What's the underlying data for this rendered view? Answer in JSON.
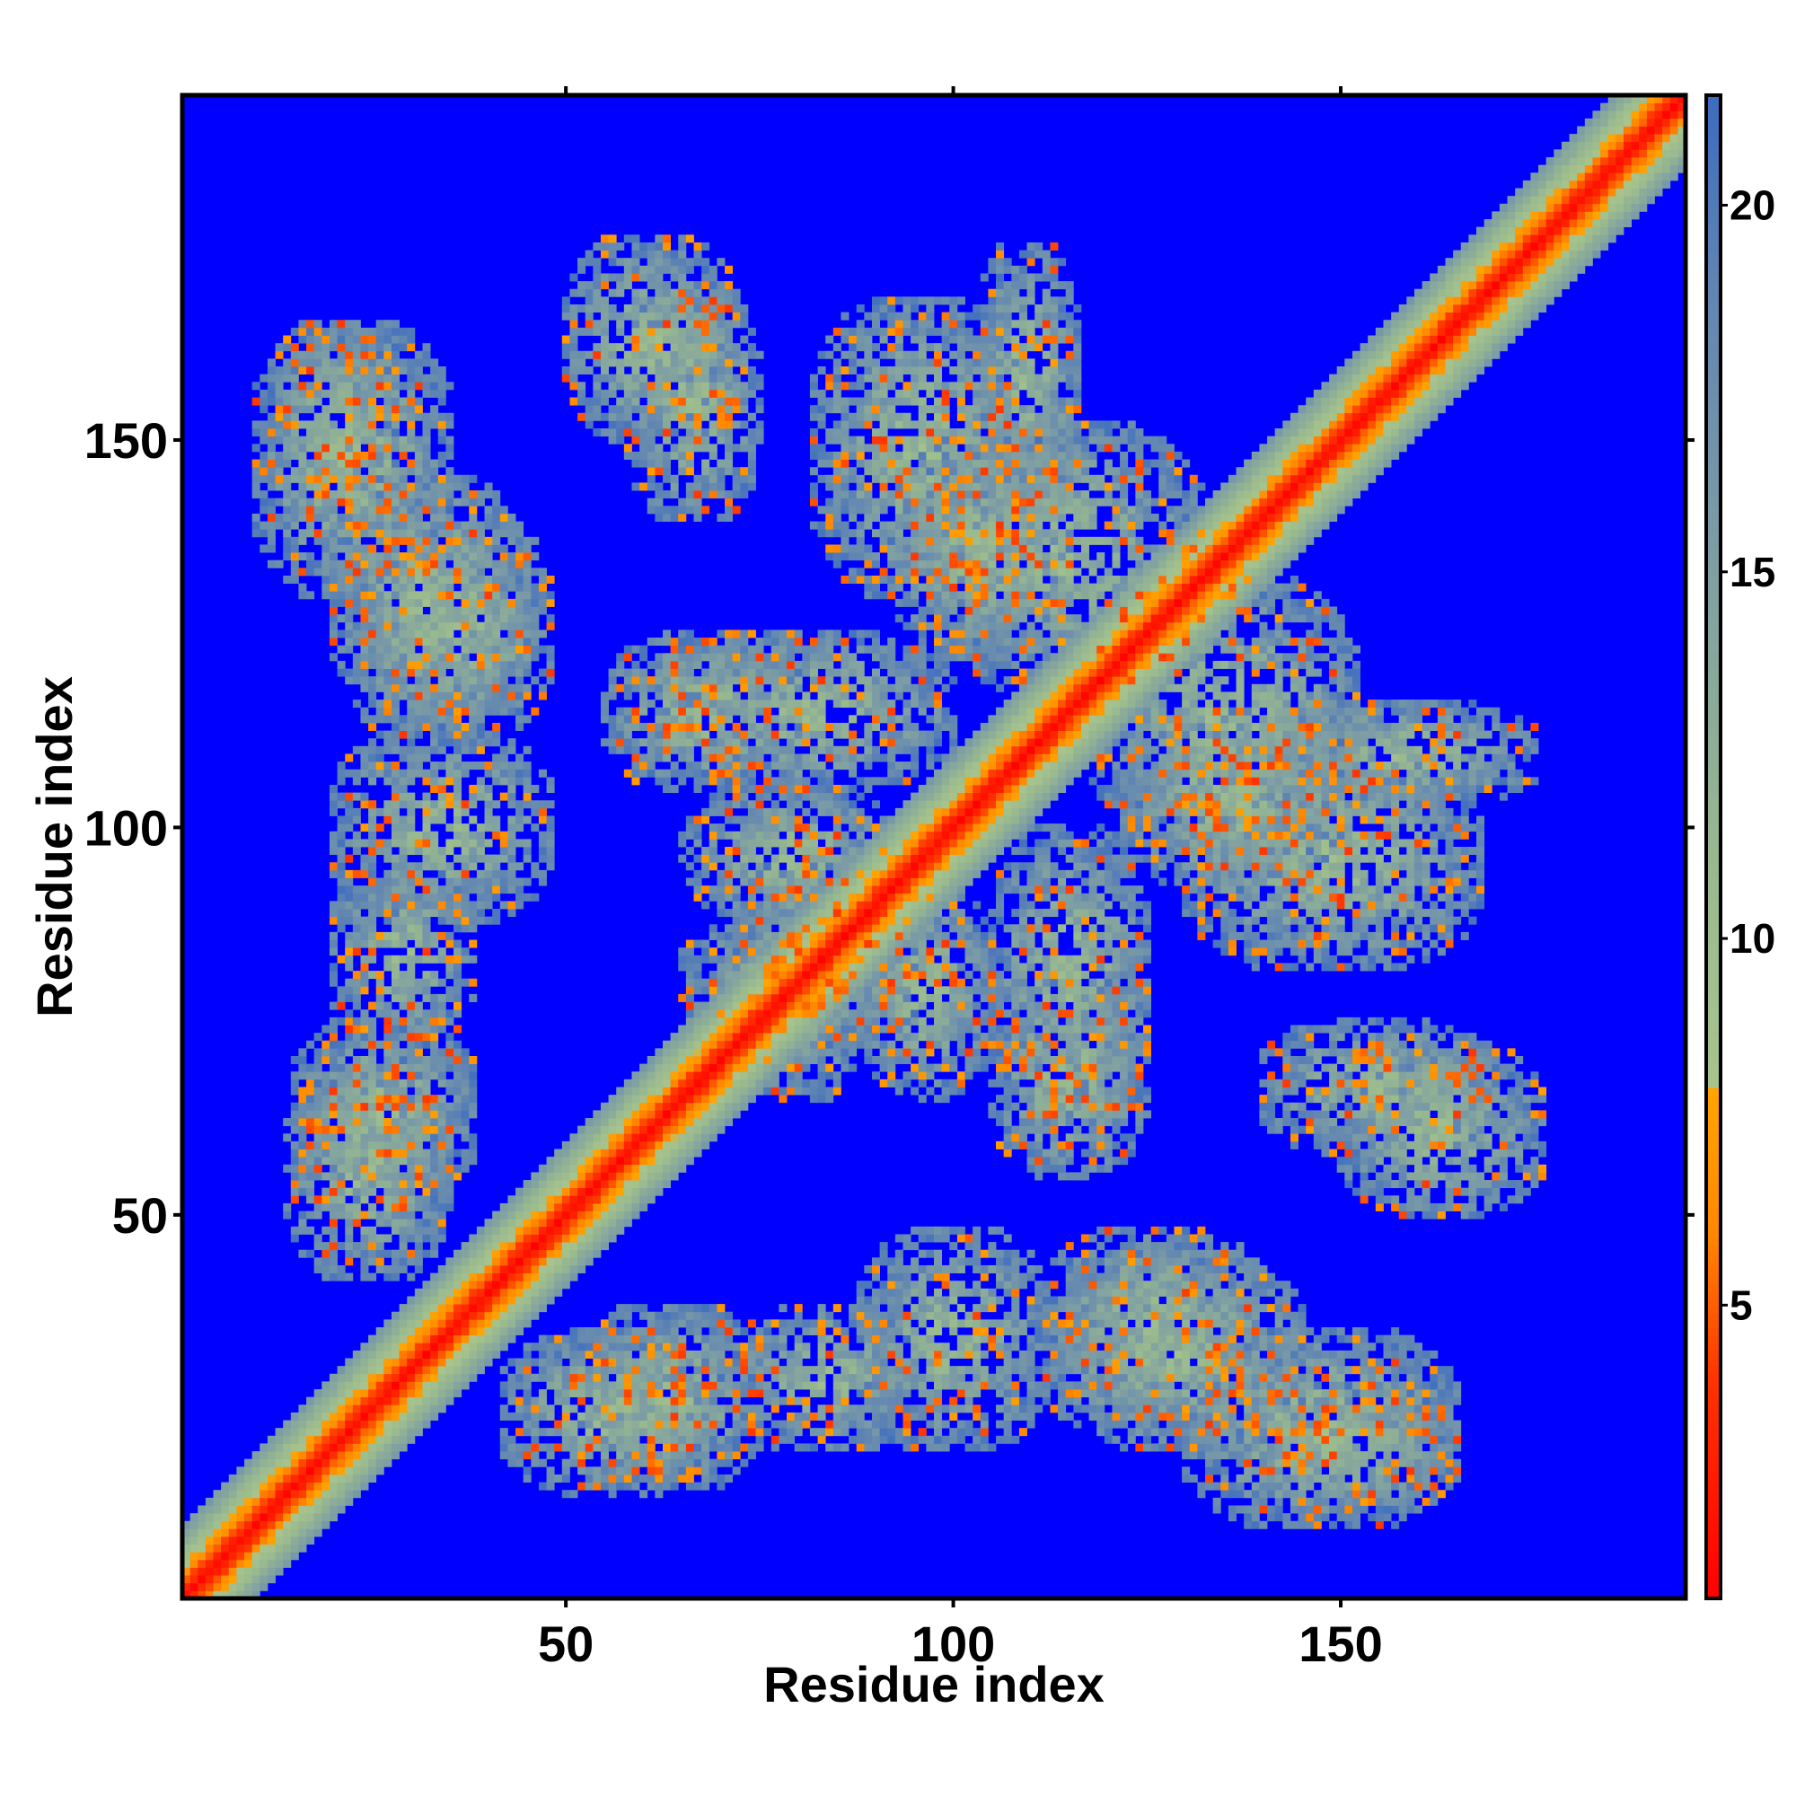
{
  "chart_data": {
    "type": "heatmap",
    "title": "",
    "xlabel": "Residue index",
    "ylabel": "Residue index",
    "n_residues": 194,
    "xlim": [
      1,
      194
    ],
    "ylim": [
      1,
      194
    ],
    "x_ticks": [
      50,
      100,
      150
    ],
    "y_ticks": [
      50,
      100,
      150
    ],
    "x_tick_labels": [
      "50",
      "100",
      "150"
    ],
    "y_tick_labels": [
      "50",
      "100",
      "150"
    ],
    "colorbar": {
      "range": [
        1,
        21.5
      ],
      "ticks": [
        5,
        10,
        15,
        20
      ],
      "tick_labels": [
        "5",
        "10",
        "15",
        "20"
      ],
      "stops": [
        {
          "value": 1,
          "color": "#ff0000"
        },
        {
          "value": 4,
          "color": "#ff3300"
        },
        {
          "value": 6,
          "color": "#ff8800"
        },
        {
          "value": 8,
          "color": "#ffa500"
        },
        {
          "value": 8.01,
          "color": "#a8c48c"
        },
        {
          "value": 11,
          "color": "#99b98f"
        },
        {
          "value": 15,
          "color": "#7f9fa3"
        },
        {
          "value": 19,
          "color": "#5f84b3"
        },
        {
          "value": 21.5,
          "color": "#3c6cc0"
        }
      ],
      "background_color": "#0000ff"
    },
    "contact_blocks": [
      {
        "x": [
          12,
          28
        ],
        "y": [
          138,
          165
        ]
      },
      {
        "x": [
          20,
          45
        ],
        "y": [
          112,
          145
        ]
      },
      {
        "x": [
          50,
          72
        ],
        "y": [
          150,
          176
        ]
      },
      {
        "x": [
          55,
          80
        ],
        "y": [
          105,
          125
        ]
      },
      {
        "x": [
          65,
          92
        ],
        "y": [
          88,
          105
        ]
      },
      {
        "x": [
          82,
          110
        ],
        "y": [
          130,
          168
        ]
      },
      {
        "x": [
          92,
          115
        ],
        "y": [
          122,
          150
        ]
      },
      {
        "x": [
          118,
          152
        ],
        "y": [
          98,
          132
        ]
      },
      {
        "x": [
          140,
          175
        ],
        "y": [
          103,
          116
        ]
      },
      {
        "x": [
          105,
          125
        ],
        "y": [
          62,
          100
        ]
      },
      {
        "x": [
          140,
          170
        ],
        "y": [
          58,
          75
        ]
      },
      {
        "x": [
          15,
          38
        ],
        "y": [
          52,
          75
        ]
      },
      {
        "x": [
          20,
          38
        ],
        "y": [
          72,
          95
        ]
      },
      {
        "x": [
          42,
          70
        ],
        "y": [
          14,
          35
        ]
      },
      {
        "x": [
          88,
          112
        ],
        "y": [
          20,
          48
        ]
      },
      {
        "x": [
          112,
          140
        ],
        "y": [
          25,
          48
        ]
      },
      {
        "x": [
          130,
          165
        ],
        "y": [
          10,
          35
        ]
      },
      {
        "x": [
          65,
          95
        ],
        "y": [
          72,
          88
        ]
      }
    ]
  }
}
